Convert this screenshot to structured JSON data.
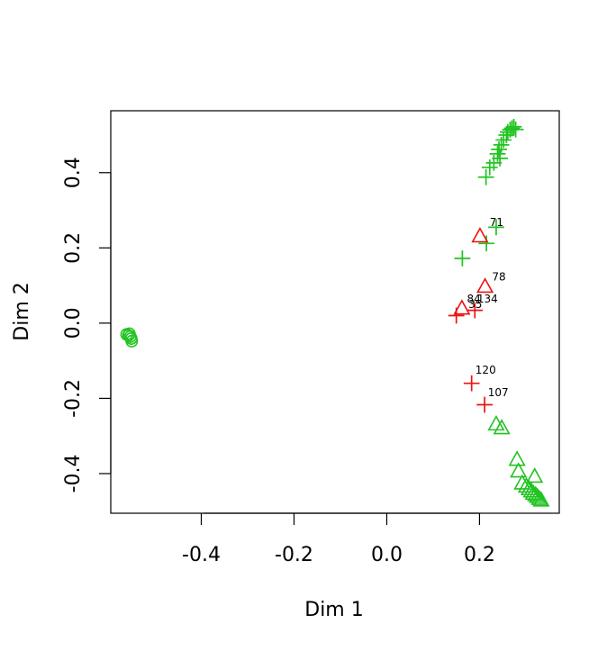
{
  "chart_data": {
    "type": "scatter",
    "title": "",
    "xlabel": "Dim 1",
    "ylabel": "Dim 2",
    "xlim": [
      -0.5952,
      0.372
    ],
    "ylim": [
      -0.5054,
      0.5646
    ],
    "xticks": [
      -0.4,
      -0.2,
      0.0,
      0.2
    ],
    "xtick_labels": [
      "-0.4",
      "-0.2",
      "0.0",
      "0.2"
    ],
    "yticks": [
      -0.4,
      -0.2,
      0.0,
      0.2,
      0.4
    ],
    "ytick_labels": [
      "-0.4",
      "-0.2",
      "0.0",
      "0.2",
      "0.4"
    ],
    "grid": false,
    "legend": "none",
    "colors": {
      "green": "#22c322",
      "red": "#ee1111"
    },
    "points": [
      {
        "x": -0.561,
        "y": -0.03,
        "marker": "circle",
        "color": "green"
      },
      {
        "x": -0.557,
        "y": -0.033,
        "marker": "circle",
        "color": "green"
      },
      {
        "x": -0.555,
        "y": -0.028,
        "marker": "circle",
        "color": "green"
      },
      {
        "x": -0.553,
        "y": -0.036,
        "marker": "circle",
        "color": "green"
      },
      {
        "x": -0.551,
        "y": -0.041,
        "marker": "circle",
        "color": "green"
      },
      {
        "x": -0.55,
        "y": -0.048,
        "marker": "circle",
        "color": "green"
      },
      {
        "x": 0.261,
        "y": 0.508,
        "marker": "plus",
        "color": "green"
      },
      {
        "x": 0.266,
        "y": 0.514,
        "marker": "plus",
        "color": "green"
      },
      {
        "x": 0.27,
        "y": 0.518,
        "marker": "plus",
        "color": "green"
      },
      {
        "x": 0.274,
        "y": 0.522,
        "marker": "plus",
        "color": "green"
      },
      {
        "x": 0.278,
        "y": 0.515,
        "marker": "plus",
        "color": "green"
      },
      {
        "x": 0.258,
        "y": 0.5,
        "marker": "plus",
        "color": "green"
      },
      {
        "x": 0.252,
        "y": 0.487,
        "marker": "plus",
        "color": "green"
      },
      {
        "x": 0.247,
        "y": 0.474,
        "marker": "plus",
        "color": "green"
      },
      {
        "x": 0.242,
        "y": 0.462,
        "marker": "plus",
        "color": "green"
      },
      {
        "x": 0.239,
        "y": 0.45,
        "marker": "plus",
        "color": "green"
      },
      {
        "x": 0.244,
        "y": 0.438,
        "marker": "plus",
        "color": "green"
      },
      {
        "x": 0.231,
        "y": 0.426,
        "marker": "plus",
        "color": "green"
      },
      {
        "x": 0.222,
        "y": 0.414,
        "marker": "plus",
        "color": "green"
      },
      {
        "x": 0.214,
        "y": 0.388,
        "marker": "plus",
        "color": "green"
      },
      {
        "x": 0.236,
        "y": 0.255,
        "marker": "plus",
        "color": "green"
      },
      {
        "x": 0.215,
        "y": 0.212,
        "marker": "plus",
        "color": "green"
      },
      {
        "x": 0.163,
        "y": 0.172,
        "marker": "plus",
        "color": "green"
      },
      {
        "x": 0.201,
        "y": 0.232,
        "marker": "triangle",
        "color": "red"
      },
      {
        "x": 0.212,
        "y": 0.098,
        "marker": "triangle",
        "color": "red"
      },
      {
        "x": 0.162,
        "y": 0.04,
        "marker": "triangle",
        "color": "red"
      },
      {
        "x": 0.19,
        "y": 0.034,
        "marker": "plus",
        "color": "red"
      },
      {
        "x": 0.15,
        "y": 0.02,
        "marker": "plus",
        "color": "red"
      },
      {
        "x": 0.183,
        "y": -0.16,
        "marker": "plus",
        "color": "red"
      },
      {
        "x": 0.211,
        "y": -0.217,
        "marker": "plus",
        "color": "red"
      },
      {
        "x": 0.236,
        "y": -0.268,
        "marker": "triangle",
        "color": "green"
      },
      {
        "x": 0.248,
        "y": -0.278,
        "marker": "triangle",
        "color": "green"
      },
      {
        "x": 0.281,
        "y": -0.362,
        "marker": "triangle",
        "color": "green"
      },
      {
        "x": 0.284,
        "y": -0.393,
        "marker": "triangle",
        "color": "green"
      },
      {
        "x": 0.292,
        "y": -0.425,
        "marker": "triangle",
        "color": "green"
      },
      {
        "x": 0.301,
        "y": -0.433,
        "marker": "triangle",
        "color": "green"
      },
      {
        "x": 0.307,
        "y": -0.44,
        "marker": "triangle",
        "color": "green"
      },
      {
        "x": 0.312,
        "y": -0.446,
        "marker": "triangle",
        "color": "green"
      },
      {
        "x": 0.316,
        "y": -0.452,
        "marker": "triangle",
        "color": "green"
      },
      {
        "x": 0.319,
        "y": -0.407,
        "marker": "triangle",
        "color": "green"
      },
      {
        "x": 0.321,
        "y": -0.456,
        "marker": "triangle",
        "color": "green"
      },
      {
        "x": 0.325,
        "y": -0.461,
        "marker": "triangle",
        "color": "green"
      },
      {
        "x": 0.329,
        "y": -0.466,
        "marker": "triangle",
        "color": "green"
      },
      {
        "x": 0.333,
        "y": -0.47,
        "marker": "triangle",
        "color": "green"
      }
    ],
    "labels": [
      {
        "text": "71",
        "x": 0.222,
        "y": 0.258,
        "anchor": "start"
      },
      {
        "text": "78",
        "x": 0.227,
        "y": 0.113,
        "anchor": "start"
      },
      {
        "text": "84",
        "x": 0.173,
        "y": 0.055,
        "anchor": "start"
      },
      {
        "text": "134",
        "x": 0.195,
        "y": 0.055,
        "anchor": "start"
      },
      {
        "text": "35",
        "x": 0.176,
        "y": 0.04,
        "anchor": "start"
      },
      {
        "text": "120",
        "x": 0.191,
        "y": -0.134,
        "anchor": "start"
      },
      {
        "text": "107",
        "x": 0.218,
        "y": -0.194,
        "anchor": "start"
      }
    ]
  }
}
